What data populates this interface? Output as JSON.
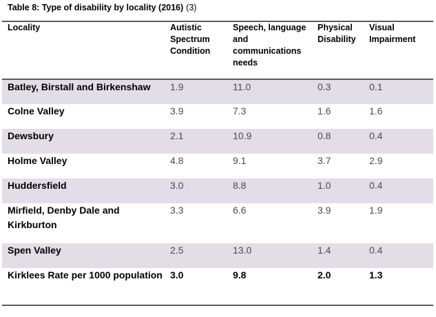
{
  "caption": {
    "title": "Table 8: Type of disability by locality (2016)",
    "ref": "(3)"
  },
  "headers": [
    "Locality",
    "Autistic Spectrum Condition",
    "Speech, language and communications needs",
    "Physical Disability",
    "Visual Impairment"
  ],
  "rows": [
    {
      "locality": "Batley, Birstall and Birkenshaw",
      "values": [
        "1.9",
        "11.0",
        "0.3",
        "0.1"
      ]
    },
    {
      "locality": "Colne Valley",
      "values": [
        "3.9",
        "7.3",
        "1.6",
        "1.6"
      ]
    },
    {
      "locality": "Dewsbury",
      "values": [
        "2.1",
        "10.9",
        "0.8",
        "0.4"
      ]
    },
    {
      "locality": "Holme Valley",
      "values": [
        "4.8",
        "9.1",
        "3.7",
        "2.9"
      ]
    },
    {
      "locality": "Huddersfield",
      "values": [
        "3.0",
        "8.8",
        "1.0",
        "0.4"
      ]
    },
    {
      "locality": "Mirfield, Denby Dale and Kirkburton",
      "values": [
        "3.3",
        "6.6",
        "3.9",
        "1.9"
      ]
    },
    {
      "locality": "Spen Valley",
      "values": [
        "2.5",
        "13.0",
        "1.4",
        "0.4"
      ]
    },
    {
      "locality": "Kirklees Rate per 1000 population",
      "values": [
        "3.0",
        "9.8",
        "2.0",
        "1.3"
      ]
    }
  ],
  "colors": {
    "shade": "#e3dde8",
    "rule": "#5a5a5a"
  }
}
